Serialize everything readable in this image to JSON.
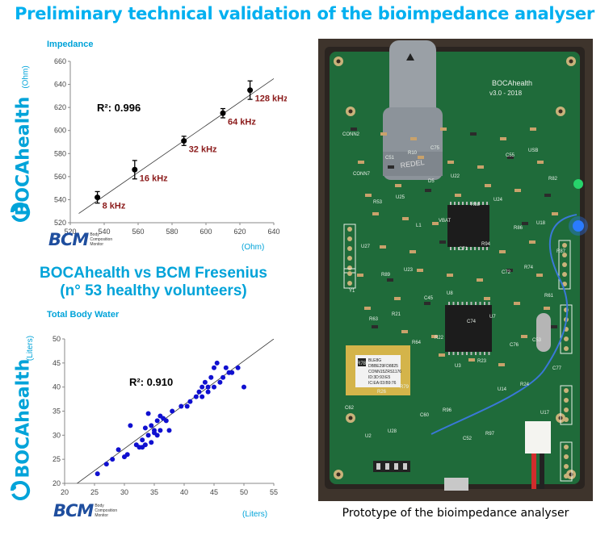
{
  "title": "Preliminary technical validation of the bioimpedance analyser",
  "brand": "BOCAhealth",
  "comparison": {
    "line1": "BOCAhealth vs BCM Fresenius",
    "line2": "(n° 53 healthy volunteers)"
  },
  "bcm_logo": {
    "word": "BCM",
    "sub": [
      "Body",
      "Composition",
      "Monitor"
    ]
  },
  "caption": "Prototype of the bioimpedance analyser",
  "board": {
    "name": "BOCAhealth",
    "version": "v3.0 - 2018",
    "connector_label": "REDEL",
    "module_lines": [
      "BLE8G",
      "DBBE29FD8825",
      "CONN15ZRS1176",
      "ID:3D:93:E5",
      "IC:EA:03:B9:76"
    ],
    "silk_labels": [
      "CONN2",
      "C51",
      "D5",
      "R88",
      "R86",
      "R87",
      "R89",
      "C45",
      "C74",
      "C76",
      "C77",
      "R26",
      "C60",
      "C52",
      "C55",
      "R82",
      "R53",
      "L1",
      "C71",
      "C72",
      "R61",
      "R63",
      "R64",
      "U3",
      "U14",
      "U17",
      "U2",
      "R10",
      "U22",
      "U24",
      "U18",
      "U27",
      "U23",
      "U8",
      "U7",
      "C53",
      "R78",
      "R79",
      "R96",
      "R97",
      "USB",
      "CONN7",
      "U25",
      "VBAT",
      "R94",
      "R74",
      "Y1",
      "R21",
      "R22",
      "R23",
      "R24",
      "C62",
      "U28",
      "C75"
    ],
    "colors": {
      "pcb": "#1f6b3a",
      "pcb_dark": "#164f2b",
      "silk": "#e8f0e8",
      "led": "#2a7bff"
    }
  },
  "chart_data": [
    {
      "type": "scatter",
      "title": "Impedance",
      "ylabel_unit": "(Ohm)",
      "xlabel_unit": "(Ohm)",
      "xlim": [
        520,
        640
      ],
      "ylim": [
        520,
        660
      ],
      "xticks": [
        520,
        540,
        560,
        580,
        600,
        620,
        640
      ],
      "yticks": [
        520,
        540,
        560,
        580,
        600,
        620,
        640,
        660
      ],
      "annotation": "R²: 0.996",
      "points": [
        {
          "x": 536,
          "y": 542,
          "err": 5,
          "label": "8 kHz"
        },
        {
          "x": 558,
          "y": 566,
          "err": 8,
          "label": "16 kHz"
        },
        {
          "x": 587,
          "y": 591,
          "err": 4,
          "label": "32 kHz"
        },
        {
          "x": 610,
          "y": 615,
          "err": 4,
          "label": "64 kHz"
        },
        {
          "x": 626,
          "y": 635,
          "err": 8,
          "label": "128 kHz"
        }
      ],
      "fit": [
        [
          525,
          528
        ],
        [
          640,
          645
        ]
      ],
      "grid": false
    },
    {
      "type": "scatter",
      "title": "Total Body Water",
      "ylabel_unit": "(Liters)",
      "xlabel_unit": "(Liters)",
      "xlim": [
        20,
        55
      ],
      "ylim": [
        20,
        50
      ],
      "xticks": [
        20,
        25,
        30,
        35,
        40,
        45,
        50,
        55
      ],
      "yticks": [
        20,
        25,
        30,
        35,
        40,
        45,
        50
      ],
      "annotation": "R²: 0.910",
      "points": [
        {
          "x": 25.5,
          "y": 22
        },
        {
          "x": 27,
          "y": 24
        },
        {
          "x": 28,
          "y": 25
        },
        {
          "x": 29,
          "y": 27
        },
        {
          "x": 30,
          "y": 25.5
        },
        {
          "x": 31,
          "y": 32
        },
        {
          "x": 32,
          "y": 28
        },
        {
          "x": 32.5,
          "y": 27.5
        },
        {
          "x": 33,
          "y": 29
        },
        {
          "x": 33.5,
          "y": 28
        },
        {
          "x": 33.5,
          "y": 31.5
        },
        {
          "x": 34,
          "y": 30
        },
        {
          "x": 34,
          "y": 34.5
        },
        {
          "x": 34.5,
          "y": 28.5
        },
        {
          "x": 34.5,
          "y": 32
        },
        {
          "x": 35,
          "y": 30.5
        },
        {
          "x": 35,
          "y": 31
        },
        {
          "x": 35.5,
          "y": 33
        },
        {
          "x": 35.5,
          "y": 30
        },
        {
          "x": 36,
          "y": 31
        },
        {
          "x": 36,
          "y": 34
        },
        {
          "x": 36.5,
          "y": 33.5
        },
        {
          "x": 37.5,
          "y": 31
        },
        {
          "x": 38,
          "y": 35
        },
        {
          "x": 39.5,
          "y": 36
        },
        {
          "x": 40.5,
          "y": 36
        },
        {
          "x": 41,
          "y": 37
        },
        {
          "x": 42,
          "y": 38
        },
        {
          "x": 42.5,
          "y": 39
        },
        {
          "x": 43,
          "y": 40
        },
        {
          "x": 43.5,
          "y": 41
        },
        {
          "x": 44,
          "y": 39
        },
        {
          "x": 44,
          "y": 40
        },
        {
          "x": 44.5,
          "y": 42
        },
        {
          "x": 45,
          "y": 44
        },
        {
          "x": 45.5,
          "y": 45
        },
        {
          "x": 46,
          "y": 41
        },
        {
          "x": 46.5,
          "y": 42
        },
        {
          "x": 47,
          "y": 44
        },
        {
          "x": 47.5,
          "y": 43
        },
        {
          "x": 48,
          "y": 43
        },
        {
          "x": 49,
          "y": 44
        },
        {
          "x": 50,
          "y": 40
        },
        {
          "x": 45,
          "y": 40
        },
        {
          "x": 43,
          "y": 38
        },
        {
          "x": 33,
          "y": 27.5
        },
        {
          "x": 30.5,
          "y": 26
        },
        {
          "x": 37,
          "y": 33
        }
      ],
      "fit": [
        [
          21,
          19
        ],
        [
          55,
          50
        ]
      ],
      "grid": false
    }
  ]
}
